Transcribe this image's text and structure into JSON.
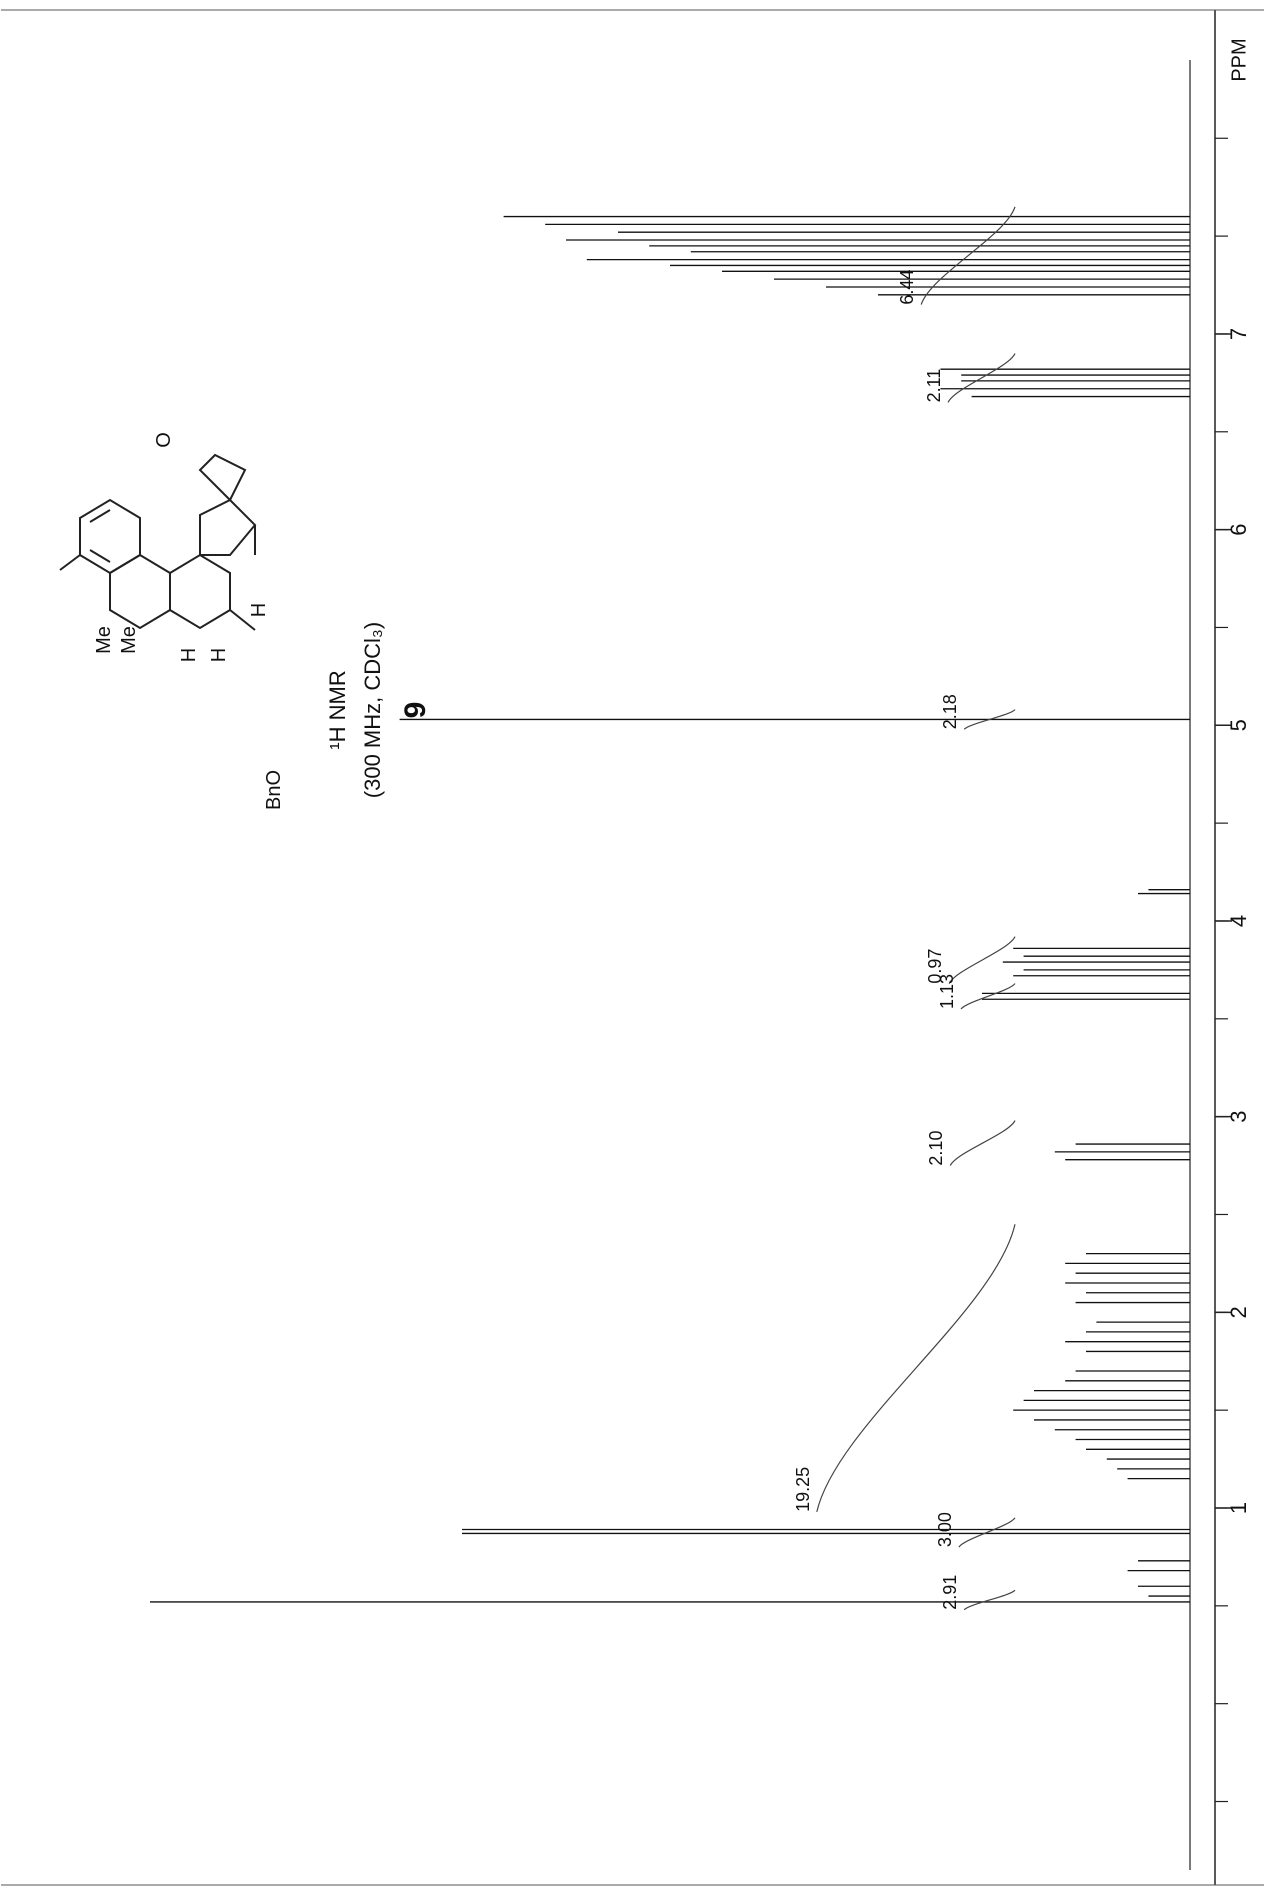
{
  "chart_data": {
    "type": "line",
    "title": "¹H NMR",
    "subtitle": "(300 MHz, CDCl₃)",
    "compound_number": "9",
    "xlabel": "PPM",
    "ylabel": "",
    "xlim": [
      8.4,
      -0.85
    ],
    "x_reversed": true,
    "orientation": "rotated-90-ccw",
    "ticks_major": [
      1,
      2,
      3,
      4,
      5,
      6,
      7
    ],
    "ticks_minor_step": 0.5,
    "grid": false,
    "structure_labels": [
      "Me",
      "Me",
      "O",
      "BnO",
      "H",
      "H",
      "H"
    ],
    "peaks": [
      {
        "ppm": 7.6,
        "height": 0.66
      },
      {
        "ppm": 7.56,
        "height": 0.62
      },
      {
        "ppm": 7.52,
        "height": 0.55
      },
      {
        "ppm": 7.48,
        "height": 0.6
      },
      {
        "ppm": 7.45,
        "height": 0.52
      },
      {
        "ppm": 7.42,
        "height": 0.48
      },
      {
        "ppm": 7.38,
        "height": 0.58
      },
      {
        "ppm": 7.35,
        "height": 0.5
      },
      {
        "ppm": 7.32,
        "height": 0.45
      },
      {
        "ppm": 7.28,
        "height": 0.4
      },
      {
        "ppm": 7.24,
        "height": 0.35
      },
      {
        "ppm": 7.2,
        "height": 0.3
      },
      {
        "ppm": 6.82,
        "height": 0.24
      },
      {
        "ppm": 6.79,
        "height": 0.22
      },
      {
        "ppm": 6.76,
        "height": 0.22
      },
      {
        "ppm": 6.72,
        "height": 0.24
      },
      {
        "ppm": 6.68,
        "height": 0.21
      },
      {
        "ppm": 5.03,
        "height": 0.76
      },
      {
        "ppm": 4.16,
        "height": 0.04
      },
      {
        "ppm": 4.14,
        "height": 0.05
      },
      {
        "ppm": 3.86,
        "height": 0.17
      },
      {
        "ppm": 3.82,
        "height": 0.16
      },
      {
        "ppm": 3.79,
        "height": 0.18
      },
      {
        "ppm": 3.75,
        "height": 0.16
      },
      {
        "ppm": 3.72,
        "height": 0.17
      },
      {
        "ppm": 3.63,
        "height": 0.2
      },
      {
        "ppm": 3.6,
        "height": 0.2
      },
      {
        "ppm": 2.86,
        "height": 0.11
      },
      {
        "ppm": 2.82,
        "height": 0.13
      },
      {
        "ppm": 2.78,
        "height": 0.12
      },
      {
        "ppm": 2.3,
        "height": 0.1
      },
      {
        "ppm": 2.25,
        "height": 0.12
      },
      {
        "ppm": 2.2,
        "height": 0.11
      },
      {
        "ppm": 2.15,
        "height": 0.12
      },
      {
        "ppm": 2.1,
        "height": 0.1
      },
      {
        "ppm": 2.05,
        "height": 0.11
      },
      {
        "ppm": 1.95,
        "height": 0.09
      },
      {
        "ppm": 1.9,
        "height": 0.1
      },
      {
        "ppm": 1.85,
        "height": 0.12
      },
      {
        "ppm": 1.8,
        "height": 0.1
      },
      {
        "ppm": 1.7,
        "height": 0.11
      },
      {
        "ppm": 1.65,
        "height": 0.12
      },
      {
        "ppm": 1.6,
        "height": 0.15
      },
      {
        "ppm": 1.55,
        "height": 0.16
      },
      {
        "ppm": 1.5,
        "height": 0.17
      },
      {
        "ppm": 1.45,
        "height": 0.15
      },
      {
        "ppm": 1.4,
        "height": 0.13
      },
      {
        "ppm": 1.35,
        "height": 0.11
      },
      {
        "ppm": 1.3,
        "height": 0.1
      },
      {
        "ppm": 1.25,
        "height": 0.08
      },
      {
        "ppm": 1.2,
        "height": 0.07
      },
      {
        "ppm": 1.15,
        "height": 0.06
      },
      {
        "ppm": 0.89,
        "height": 0.7
      },
      {
        "ppm": 0.87,
        "height": 0.7
      },
      {
        "ppm": 0.73,
        "height": 0.05
      },
      {
        "ppm": 0.68,
        "height": 0.06
      },
      {
        "ppm": 0.6,
        "height": 0.05
      },
      {
        "ppm": 0.55,
        "height": 0.04
      },
      {
        "ppm": 0.52,
        "height": 1.0
      }
    ],
    "integrals": [
      {
        "label": "6.44",
        "from": 7.65,
        "to": 7.15
      },
      {
        "label": "2.11",
        "from": 6.9,
        "to": 6.65
      },
      {
        "label": "2.18",
        "from": 5.08,
        "to": 4.98
      },
      {
        "label": "0.97",
        "from": 3.92,
        "to": 3.68
      },
      {
        "label": "1.13",
        "from": 3.68,
        "to": 3.55
      },
      {
        "label": "2.10",
        "from": 2.98,
        "to": 2.75
      },
      {
        "label": "19.25",
        "from": 2.45,
        "to": 0.98
      },
      {
        "label": "3.00",
        "from": 0.95,
        "to": 0.8
      },
      {
        "label": "2.91",
        "from": 0.58,
        "to": 0.48
      }
    ]
  }
}
